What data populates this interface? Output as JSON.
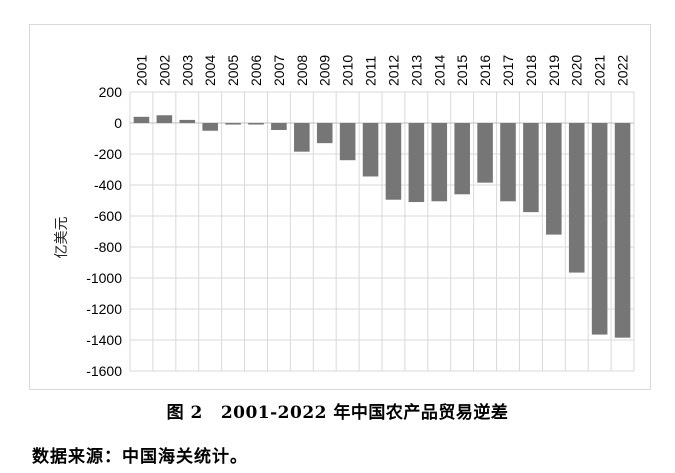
{
  "figure": {
    "number": "图 2",
    "title": "2001-2022 年中国农产品贸易逆差",
    "source": "数据来源：中国海关统计。"
  },
  "colors": {
    "bar": "#767676",
    "grid": "#d9d9d9",
    "axis": "#bfbfbf"
  },
  "chart_data": {
    "type": "bar",
    "ylabel": "亿美元",
    "ylim": [
      -1600,
      200
    ],
    "yticks": [
      200,
      0,
      -200,
      -400,
      -600,
      -800,
      -1000,
      -1200,
      -1400,
      -1600
    ],
    "x_axis_position": "top",
    "grid": true,
    "categories": [
      "2001",
      "2002",
      "2003",
      "2004",
      "2005",
      "2006",
      "2007",
      "2008",
      "2009",
      "2010",
      "2011",
      "2012",
      "2013",
      "2014",
      "2015",
      "2016",
      "2017",
      "2018",
      "2019",
      "2020",
      "2021",
      "2022"
    ],
    "values": [
      40,
      50,
      20,
      -50,
      -10,
      -10,
      -45,
      -185,
      -130,
      -240,
      -345,
      -495,
      -510,
      -505,
      -460,
      -385,
      -505,
      -575,
      -720,
      -965,
      -1365,
      -1385
    ]
  }
}
